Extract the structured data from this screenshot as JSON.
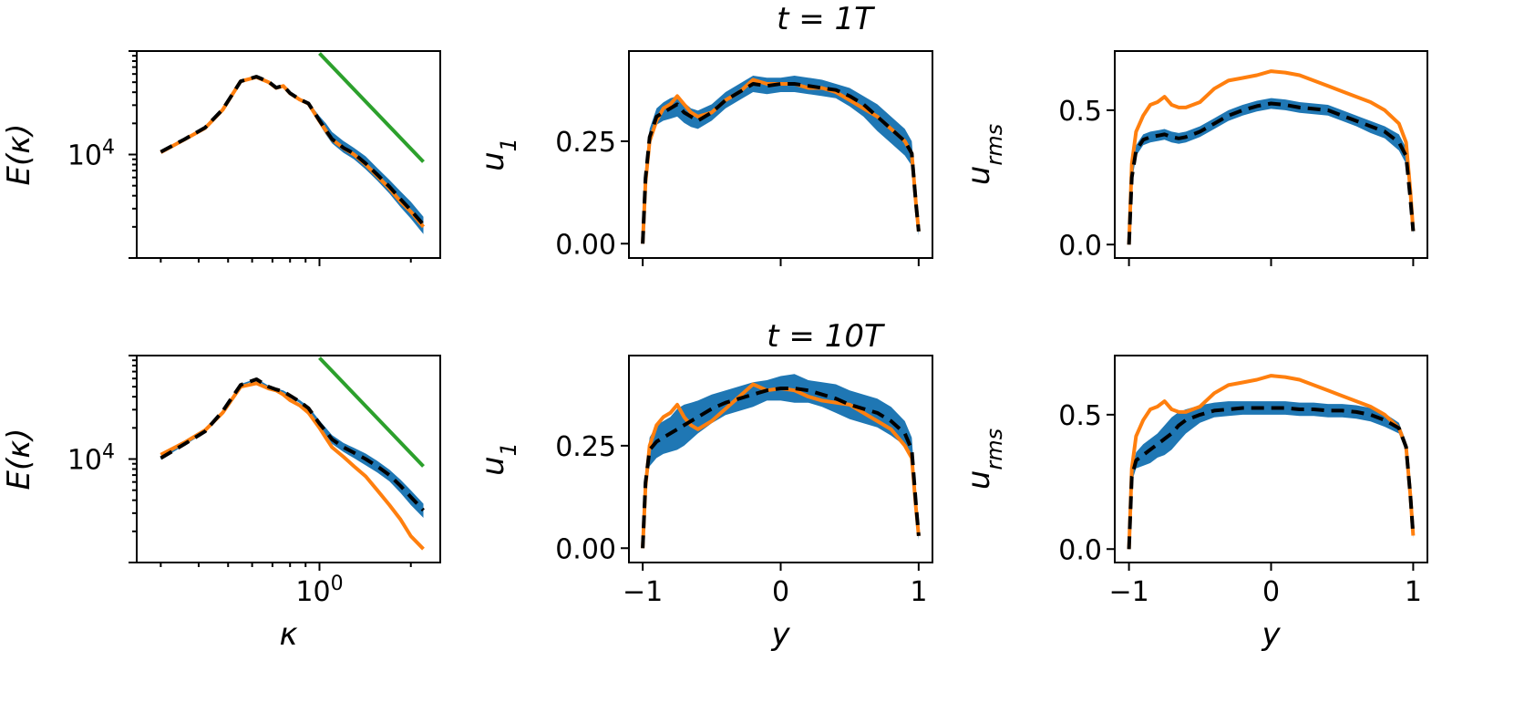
{
  "figure": {
    "titles": [
      "t = 1T",
      "t = 10T"
    ],
    "colors": {
      "band": "#1f77b4",
      "reference": "#ff7f0e",
      "mean": "#000000",
      "slope": "#2ca02c"
    }
  },
  "chart_data": [
    {
      "id": "spectrum-1T",
      "type": "line",
      "log": true,
      "xlabel": "",
      "ylabel": "E(κ)",
      "xtick_labels": [],
      "ytick_labels": [
        "10^4"
      ],
      "xlim": [
        0.25,
        2.5
      ],
      "ylim": [
        1000,
        100000
      ],
      "x": [
        0.3,
        0.36,
        0.42,
        0.48,
        0.55,
        0.62,
        0.68,
        0.72,
        0.76,
        0.8,
        0.86,
        0.92,
        1.0,
        1.05,
        1.1,
        1.2,
        1.3,
        1.42,
        1.55,
        1.7,
        1.85,
        2.0,
        2.2
      ],
      "series": [
        {
          "name": "reference",
          "values": [
            10500,
            14000,
            18000,
            27000,
            51000,
            56000,
            50000,
            44000,
            46000,
            39000,
            34000,
            31000,
            21000,
            17000,
            14000,
            11500,
            10000,
            8000,
            6200,
            4700,
            3500,
            2800,
            2000
          ]
        },
        {
          "name": "mean",
          "values": [
            10600,
            14100,
            18200,
            27300,
            51000,
            56500,
            50500,
            44200,
            46200,
            39200,
            34200,
            31200,
            21300,
            17200,
            14100,
            11600,
            10200,
            8200,
            6400,
            4900,
            3700,
            2900,
            2100
          ]
        },
        {
          "name": "band_upper",
          "values": [
            10800,
            14400,
            18600,
            27800,
            52000,
            57500,
            51500,
            45000,
            47200,
            40000,
            35200,
            32200,
            23500,
            20000,
            16500,
            13500,
            11600,
            9600,
            7400,
            5700,
            4400,
            3500,
            2500
          ]
        },
        {
          "name": "band_lower",
          "values": [
            10400,
            13800,
            17800,
            26800,
            50000,
            55500,
            49500,
            43400,
            45200,
            38400,
            33200,
            30200,
            19600,
            15600,
            12800,
            10400,
            9000,
            7200,
            5600,
            4200,
            3100,
            2400,
            1700
          ]
        }
      ],
      "slope_line": {
        "x": [
          1.0,
          2.2
        ],
        "y": [
          95000,
          8500
        ]
      }
    },
    {
      "id": "u1-1T",
      "type": "line",
      "xlabel": "",
      "ylabel": "u1",
      "xticks": [
        -1,
        0,
        1
      ],
      "xtick_labels": [],
      "yticks": [
        0,
        0.25
      ],
      "ytick_labels": [
        "0.00",
        "0.25"
      ],
      "xlim": [
        -1.1,
        1.1
      ],
      "ylim": [
        -0.035,
        0.47
      ],
      "x": [
        -1.0,
        -0.98,
        -0.95,
        -0.9,
        -0.85,
        -0.8,
        -0.75,
        -0.7,
        -0.65,
        -0.6,
        -0.5,
        -0.4,
        -0.3,
        -0.2,
        -0.1,
        0.0,
        0.1,
        0.2,
        0.3,
        0.4,
        0.5,
        0.6,
        0.7,
        0.8,
        0.9,
        0.95,
        0.98,
        1.0
      ],
      "series": [
        {
          "name": "reference",
          "values": [
            0.0,
            0.15,
            0.25,
            0.3,
            0.33,
            0.34,
            0.36,
            0.34,
            0.32,
            0.31,
            0.32,
            0.35,
            0.37,
            0.4,
            0.39,
            0.39,
            0.39,
            0.38,
            0.38,
            0.37,
            0.35,
            0.33,
            0.31,
            0.28,
            0.25,
            0.22,
            0.1,
            0.03
          ]
        },
        {
          "name": "mean",
          "values": [
            0.0,
            0.16,
            0.26,
            0.31,
            0.32,
            0.33,
            0.34,
            0.32,
            0.31,
            0.3,
            0.32,
            0.35,
            0.37,
            0.39,
            0.385,
            0.39,
            0.39,
            0.385,
            0.38,
            0.375,
            0.36,
            0.34,
            0.31,
            0.28,
            0.25,
            0.22,
            0.1,
            0.03
          ]
        },
        {
          "name": "band_upper",
          "values": [
            0.0,
            0.18,
            0.28,
            0.33,
            0.345,
            0.355,
            0.36,
            0.345,
            0.33,
            0.325,
            0.34,
            0.37,
            0.39,
            0.41,
            0.405,
            0.405,
            0.41,
            0.405,
            0.4,
            0.39,
            0.38,
            0.36,
            0.34,
            0.31,
            0.28,
            0.25,
            0.12,
            0.04
          ]
        },
        {
          "name": "band_lower",
          "values": [
            0.0,
            0.14,
            0.24,
            0.29,
            0.3,
            0.305,
            0.31,
            0.295,
            0.285,
            0.28,
            0.3,
            0.33,
            0.35,
            0.37,
            0.365,
            0.37,
            0.37,
            0.365,
            0.36,
            0.355,
            0.335,
            0.31,
            0.275,
            0.245,
            0.215,
            0.19,
            0.08,
            0.02
          ]
        }
      ]
    },
    {
      "id": "urms-1T",
      "type": "line",
      "xlabel": "",
      "ylabel": "u_rms",
      "xticks": [
        -1,
        0,
        1
      ],
      "xtick_labels": [],
      "yticks": [
        0,
        0.5
      ],
      "ytick_labels": [
        "0.0",
        "0.5"
      ],
      "xlim": [
        -1.1,
        1.1
      ],
      "ylim": [
        -0.05,
        0.72
      ],
      "x": [
        -1.0,
        -0.98,
        -0.95,
        -0.9,
        -0.85,
        -0.8,
        -0.75,
        -0.7,
        -0.65,
        -0.6,
        -0.5,
        -0.4,
        -0.3,
        -0.2,
        -0.1,
        0.0,
        0.1,
        0.2,
        0.3,
        0.4,
        0.5,
        0.6,
        0.7,
        0.8,
        0.9,
        0.95,
        0.98,
        1.0
      ],
      "series": [
        {
          "name": "reference",
          "values": [
            0.0,
            0.3,
            0.42,
            0.48,
            0.52,
            0.53,
            0.55,
            0.52,
            0.51,
            0.51,
            0.53,
            0.58,
            0.61,
            0.62,
            0.63,
            0.645,
            0.64,
            0.63,
            0.61,
            0.59,
            0.57,
            0.55,
            0.53,
            0.5,
            0.45,
            0.38,
            0.2,
            0.05
          ]
        },
        {
          "name": "mean",
          "values": [
            0.0,
            0.25,
            0.35,
            0.39,
            0.4,
            0.405,
            0.41,
            0.4,
            0.395,
            0.4,
            0.42,
            0.45,
            0.48,
            0.5,
            0.515,
            0.525,
            0.52,
            0.51,
            0.505,
            0.5,
            0.48,
            0.46,
            0.44,
            0.42,
            0.38,
            0.33,
            0.17,
            0.05
          ]
        },
        {
          "name": "band_upper",
          "values": [
            0.0,
            0.27,
            0.37,
            0.41,
            0.42,
            0.425,
            0.43,
            0.42,
            0.415,
            0.42,
            0.44,
            0.47,
            0.5,
            0.52,
            0.535,
            0.545,
            0.54,
            0.53,
            0.525,
            0.52,
            0.5,
            0.48,
            0.46,
            0.44,
            0.41,
            0.36,
            0.19,
            0.06
          ]
        },
        {
          "name": "band_lower",
          "values": [
            0.0,
            0.23,
            0.33,
            0.37,
            0.38,
            0.385,
            0.39,
            0.38,
            0.375,
            0.38,
            0.4,
            0.43,
            0.46,
            0.48,
            0.495,
            0.505,
            0.5,
            0.49,
            0.485,
            0.48,
            0.46,
            0.44,
            0.415,
            0.395,
            0.35,
            0.3,
            0.15,
            0.04
          ]
        }
      ]
    },
    {
      "id": "spectrum-10T",
      "type": "line",
      "log": true,
      "xlabel": "κ",
      "ylabel": "E(κ)",
      "xtick_labels": [
        "10^0"
      ],
      "ytick_labels": [
        "10^4"
      ],
      "xlim": [
        0.25,
        2.5
      ],
      "ylim": [
        1000,
        100000
      ],
      "x": [
        0.3,
        0.36,
        0.42,
        0.48,
        0.55,
        0.62,
        0.68,
        0.72,
        0.76,
        0.8,
        0.86,
        0.92,
        1.0,
        1.05,
        1.1,
        1.2,
        1.3,
        1.42,
        1.55,
        1.7,
        1.85,
        2.0,
        2.2
      ],
      "series": [
        {
          "name": "reference",
          "values": [
            11000,
            14500,
            19000,
            28000,
            50000,
            54000,
            48000,
            46000,
            42000,
            37000,
            33000,
            28000,
            20000,
            16000,
            13000,
            10500,
            8500,
            6800,
            5000,
            3600,
            2600,
            1800,
            1350
          ]
        },
        {
          "name": "mean",
          "values": [
            10200,
            14000,
            18500,
            29000,
            52000,
            59000,
            50000,
            47000,
            45000,
            41000,
            36000,
            31000,
            22000,
            18500,
            15500,
            13000,
            11500,
            10000,
            8500,
            7000,
            5500,
            4300,
            3200
          ]
        },
        {
          "name": "band_upper",
          "values": [
            10500,
            14400,
            19000,
            29800,
            53000,
            60000,
            51200,
            48000,
            46000,
            42200,
            37200,
            32200,
            23600,
            20000,
            17000,
            14300,
            12800,
            11300,
            9600,
            7900,
            6300,
            5000,
            3700
          ]
        },
        {
          "name": "band_lower",
          "values": [
            9900,
            13600,
            18000,
            28200,
            51000,
            58000,
            48800,
            46000,
            44000,
            39800,
            34800,
            29800,
            20400,
            17000,
            14000,
            11700,
            10200,
            8700,
            7400,
            6100,
            4700,
            3600,
            2700
          ]
        }
      ],
      "slope_line": {
        "x": [
          1.0,
          2.2
        ],
        "y": [
          95000,
          8500
        ]
      }
    },
    {
      "id": "u1-10T",
      "type": "line",
      "xlabel": "y",
      "ylabel": "u1",
      "xticks": [
        -1,
        0,
        1
      ],
      "xtick_labels": [
        "−1",
        "0",
        "1"
      ],
      "yticks": [
        0,
        0.25
      ],
      "ytick_labels": [
        "0.00",
        "0.25"
      ],
      "xlim": [
        -1.1,
        1.1
      ],
      "ylim": [
        -0.035,
        0.47
      ],
      "x": [
        -1.0,
        -0.98,
        -0.95,
        -0.9,
        -0.85,
        -0.8,
        -0.75,
        -0.7,
        -0.65,
        -0.6,
        -0.5,
        -0.4,
        -0.3,
        -0.2,
        -0.1,
        0.0,
        0.1,
        0.2,
        0.3,
        0.4,
        0.5,
        0.6,
        0.7,
        0.8,
        0.9,
        0.95,
        0.98,
        1.0
      ],
      "series": [
        {
          "name": "reference",
          "values": [
            0.0,
            0.15,
            0.25,
            0.3,
            0.32,
            0.33,
            0.35,
            0.32,
            0.3,
            0.29,
            0.31,
            0.34,
            0.37,
            0.4,
            0.385,
            0.39,
            0.385,
            0.37,
            0.36,
            0.355,
            0.35,
            0.33,
            0.31,
            0.29,
            0.25,
            0.22,
            0.1,
            0.03
          ]
        },
        {
          "name": "mean",
          "values": [
            0.0,
            0.16,
            0.24,
            0.26,
            0.27,
            0.28,
            0.29,
            0.3,
            0.31,
            0.32,
            0.34,
            0.355,
            0.365,
            0.375,
            0.385,
            0.39,
            0.39,
            0.385,
            0.375,
            0.365,
            0.35,
            0.34,
            0.33,
            0.31,
            0.28,
            0.24,
            0.11,
            0.03
          ]
        },
        {
          "name": "band_upper",
          "values": [
            0.0,
            0.18,
            0.27,
            0.3,
            0.31,
            0.32,
            0.34,
            0.35,
            0.355,
            0.36,
            0.375,
            0.385,
            0.395,
            0.405,
            0.41,
            0.42,
            0.425,
            0.41,
            0.405,
            0.4,
            0.385,
            0.375,
            0.365,
            0.345,
            0.31,
            0.27,
            0.13,
            0.04
          ]
        },
        {
          "name": "band_lower",
          "values": [
            0.0,
            0.14,
            0.2,
            0.22,
            0.23,
            0.235,
            0.24,
            0.25,
            0.265,
            0.28,
            0.305,
            0.325,
            0.335,
            0.345,
            0.36,
            0.36,
            0.355,
            0.355,
            0.345,
            0.33,
            0.315,
            0.305,
            0.295,
            0.275,
            0.25,
            0.21,
            0.09,
            0.02
          ]
        }
      ]
    },
    {
      "id": "urms-10T",
      "type": "line",
      "xlabel": "y",
      "ylabel": "u_rms",
      "xticks": [
        -1,
        0,
        1
      ],
      "xtick_labels": [
        "−1",
        "0",
        "1"
      ],
      "yticks": [
        0,
        0.5
      ],
      "ytick_labels": [
        "0.0",
        "0.5"
      ],
      "xlim": [
        -1.1,
        1.1
      ],
      "ylim": [
        -0.05,
        0.72
      ],
      "x": [
        -1.0,
        -0.98,
        -0.95,
        -0.9,
        -0.85,
        -0.8,
        -0.75,
        -0.7,
        -0.65,
        -0.6,
        -0.5,
        -0.4,
        -0.3,
        -0.2,
        -0.1,
        0.0,
        0.1,
        0.2,
        0.3,
        0.4,
        0.5,
        0.6,
        0.7,
        0.8,
        0.9,
        0.95,
        0.98,
        1.0
      ],
      "series": [
        {
          "name": "reference",
          "values": [
            0.0,
            0.3,
            0.42,
            0.48,
            0.52,
            0.53,
            0.55,
            0.52,
            0.51,
            0.51,
            0.53,
            0.58,
            0.61,
            0.62,
            0.63,
            0.645,
            0.64,
            0.63,
            0.61,
            0.59,
            0.57,
            0.55,
            0.53,
            0.5,
            0.45,
            0.38,
            0.2,
            0.05
          ]
        },
        {
          "name": "mean",
          "values": [
            0.0,
            0.27,
            0.33,
            0.35,
            0.37,
            0.39,
            0.41,
            0.43,
            0.46,
            0.48,
            0.5,
            0.515,
            0.52,
            0.525,
            0.525,
            0.525,
            0.525,
            0.52,
            0.52,
            0.515,
            0.515,
            0.51,
            0.5,
            0.48,
            0.45,
            0.38,
            0.2,
            0.05
          ]
        },
        {
          "name": "band_upper",
          "values": [
            0.0,
            0.29,
            0.36,
            0.39,
            0.41,
            0.43,
            0.46,
            0.49,
            0.51,
            0.52,
            0.535,
            0.545,
            0.55,
            0.55,
            0.55,
            0.55,
            0.55,
            0.545,
            0.545,
            0.54,
            0.54,
            0.535,
            0.525,
            0.505,
            0.47,
            0.4,
            0.21,
            0.06
          ]
        },
        {
          "name": "band_lower",
          "values": [
            0.0,
            0.25,
            0.3,
            0.31,
            0.32,
            0.34,
            0.35,
            0.37,
            0.4,
            0.43,
            0.47,
            0.49,
            0.495,
            0.5,
            0.5,
            0.5,
            0.5,
            0.495,
            0.495,
            0.49,
            0.49,
            0.485,
            0.475,
            0.455,
            0.43,
            0.36,
            0.19,
            0.04
          ]
        }
      ]
    }
  ]
}
